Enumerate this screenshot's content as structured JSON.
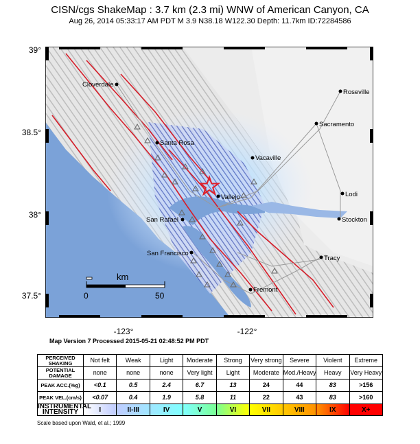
{
  "header": {
    "title": "CISN/cgs ShakeMap : 3.7 km (2.3 mi) WNW of American Canyon, CA",
    "subtitle": "Aug 26, 2014 05:33:17 AM PDT   M 3.9   N38.18 W122.30   Depth: 11.7km   ID:72284586"
  },
  "map": {
    "lat_ticks": [
      "39°",
      "38.5°",
      "38°",
      "37.5°"
    ],
    "lon_ticks": [
      "-123°",
      "-122°"
    ],
    "cities": [
      {
        "name": "Cloverdale"
      },
      {
        "name": "Roseville"
      },
      {
        "name": "Sacramento"
      },
      {
        "name": "Santa Rosa"
      },
      {
        "name": "Vacaville"
      },
      {
        "name": "Vallejo"
      },
      {
        "name": "Lodi"
      },
      {
        "name": "San Rafael"
      },
      {
        "name": "Stockton"
      },
      {
        "name": "San Francisco"
      },
      {
        "name": "Tracy"
      },
      {
        "name": "Fremont"
      }
    ],
    "scale_bar": {
      "unit": "km",
      "start": "0",
      "end": "50"
    },
    "epicenter_color": "#e0202a"
  },
  "map_version": "Map Version 7 Processed 2015-05-21 02:48:52 PM PDT",
  "legend": {
    "rows": [
      {
        "head": "PERCEIVED SHAKING",
        "cells": [
          "Not felt",
          "Weak",
          "Light",
          "Moderate",
          "Strong",
          "Very strong",
          "Severe",
          "Violent",
          "Extreme"
        ]
      },
      {
        "head": "POTENTIAL DAMAGE",
        "cells": [
          "none",
          "none",
          "none",
          "Very light",
          "Light",
          "Moderate",
          "Mod./Heavy",
          "Heavy",
          "Very Heavy"
        ]
      },
      {
        "head": "PEAK ACC.(%g)",
        "cells": [
          "<0.1",
          "0.5",
          "2.4",
          "6.7",
          "13",
          "24",
          "44",
          "83",
          ">156"
        ]
      },
      {
        "head": "PEAK VEL.(cm/s)",
        "cells": [
          "<0.07",
          "0.4",
          "1.9",
          "5.8",
          "11",
          "22",
          "43",
          "83",
          ">160"
        ]
      }
    ],
    "intensity": {
      "head": "INSTRUMENTAL INTENSITY",
      "cells": [
        "I",
        "II-III",
        "IV",
        "V",
        "VI",
        "VII",
        "VIII",
        "IX",
        "X+"
      ],
      "colors": [
        "#ffffff",
        "#bfccff",
        "#a0e6ff",
        "#80ffff",
        "#7aff93",
        "#ffff00",
        "#ffc800",
        "#ff9100",
        "#ff0000"
      ]
    }
  },
  "footnote": "Scale based upon Wald, et al.; 1999"
}
